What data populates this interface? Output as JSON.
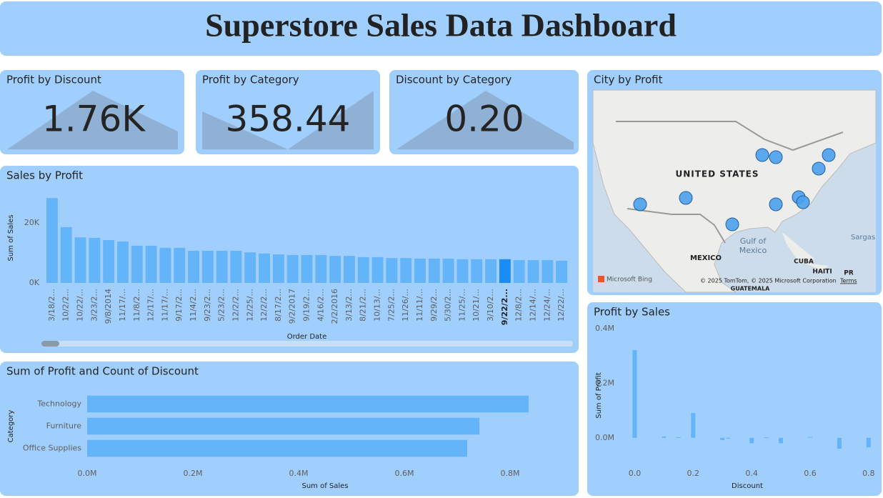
{
  "header": {
    "title": "Superstore Sales Data Dashboard"
  },
  "cards": [
    {
      "title": "Profit by Discount",
      "value": "1.76K"
    },
    {
      "title": "Profit by Category",
      "value": "358.44"
    },
    {
      "title": "Discount by Category",
      "value": "0.20"
    }
  ],
  "map": {
    "title": "City by Profit",
    "country": "UNITED STATES",
    "mexico": "MEXICO",
    "gulf_line1": "Gulf of",
    "gulf_line2": "Mexico",
    "cuba": "CUBA",
    "haiti": "HAITI",
    "pr": "PR",
    "sargasso": "Sargas",
    "guatemala": "GUATEMALA",
    "bing": "Microsoft Bing",
    "copyright": "© 2025 TomTom, © 2025 Microsoft Corporation",
    "terms": "Terms"
  },
  "chart_data": [
    {
      "type": "bar",
      "title": "Sales by Profit",
      "x_label": "Order Date",
      "y_label": "Sum of Sales",
      "color": "#64b4fa",
      "highlight_index": 32,
      "highlight_color": "#1a8cf5",
      "categories": [
        "3/18/2...",
        "10/2/2...",
        "10/22/...",
        "3/23/2...",
        "9/8/2014",
        "11/17/...",
        "11/8/2...",
        "12/17/...",
        "11/17/...",
        "9/17/2...",
        "11/4/2...",
        "9/23/2...",
        "5/23/2...",
        "12/2/2...",
        "12/25/...",
        "12/2/2...",
        "8/17/2...",
        "9/2/2017",
        "9/19/2...",
        "4/16/2...",
        "2/2/2016",
        "3/13/2...",
        "8/21/2...",
        "10/13/...",
        "7/25/2...",
        "11/26/...",
        "11/11/...",
        "9/29/2...",
        "5/30/2...",
        "11/25/...",
        "10/21/...",
        "3/10/2...",
        "9/22/2...",
        "12/8/2...",
        "12/14/...",
        "12/24/...",
        "12/22/..."
      ],
      "values": [
        28300,
        18600,
        15200,
        15000,
        14300,
        13800,
        12400,
        12400,
        11700,
        11700,
        10700,
        10700,
        10700,
        10700,
        10200,
        9800,
        9500,
        9300,
        9300,
        9300,
        9000,
        9000,
        8600,
        8600,
        8300,
        8300,
        8100,
        8100,
        8100,
        7900,
        7900,
        7900,
        7900,
        7600,
        7600,
        7600,
        7400
      ],
      "ylim": [
        0,
        30000
      ],
      "yticks": [
        {
          "value": 0,
          "label": "0K"
        },
        {
          "value": 20000,
          "label": "20K"
        }
      ],
      "grid": false
    },
    {
      "type": "barh",
      "title": "Sum of Profit and Count of Discount",
      "x_label": "Sum of Sales",
      "y_label": "Category",
      "color": "#64b4fa",
      "categories": [
        "Technology",
        "Furniture",
        "Office Supplies"
      ],
      "values": [
        835000,
        742000,
        719000
      ],
      "xlim": [
        0,
        900000
      ],
      "xticks": [
        {
          "value": 0,
          "label": "0.0M"
        },
        {
          "value": 200000,
          "label": "0.2M"
        },
        {
          "value": 400000,
          "label": "0.4M"
        },
        {
          "value": 600000,
          "label": "0.6M"
        },
        {
          "value": 800000,
          "label": "0.8M"
        }
      ],
      "grid": false
    },
    {
      "type": "bar",
      "title": "Profit by Sales",
      "x_label": "Discount",
      "y_label": "Sum of Profit",
      "color": "#64b4fa",
      "x": [
        0,
        0.1,
        0.15,
        0.2,
        0.3,
        0.32,
        0.4,
        0.45,
        0.5,
        0.6,
        0.7,
        0.8
      ],
      "values": [
        321000,
        5000,
        2000,
        91000,
        -8000,
        -3000,
        -20000,
        2000,
        -20000,
        3000,
        -40000,
        -35000
      ],
      "xlim": [
        -0.05,
        0.82
      ],
      "xticks": [
        {
          "value": 0,
          "label": "0.0"
        },
        {
          "value": 0.2,
          "label": "0.2"
        },
        {
          "value": 0.4,
          "label": "0.4"
        },
        {
          "value": 0.6,
          "label": "0.6"
        },
        {
          "value": 0.8,
          "label": "0.8"
        }
      ],
      "ylim": [
        -100000,
        410000
      ],
      "yticks": [
        {
          "value": 0,
          "label": "0.0M"
        },
        {
          "value": 200000,
          "label": "0.2M"
        },
        {
          "value": 400000,
          "label": "0.4M"
        }
      ],
      "grid": false
    }
  ]
}
